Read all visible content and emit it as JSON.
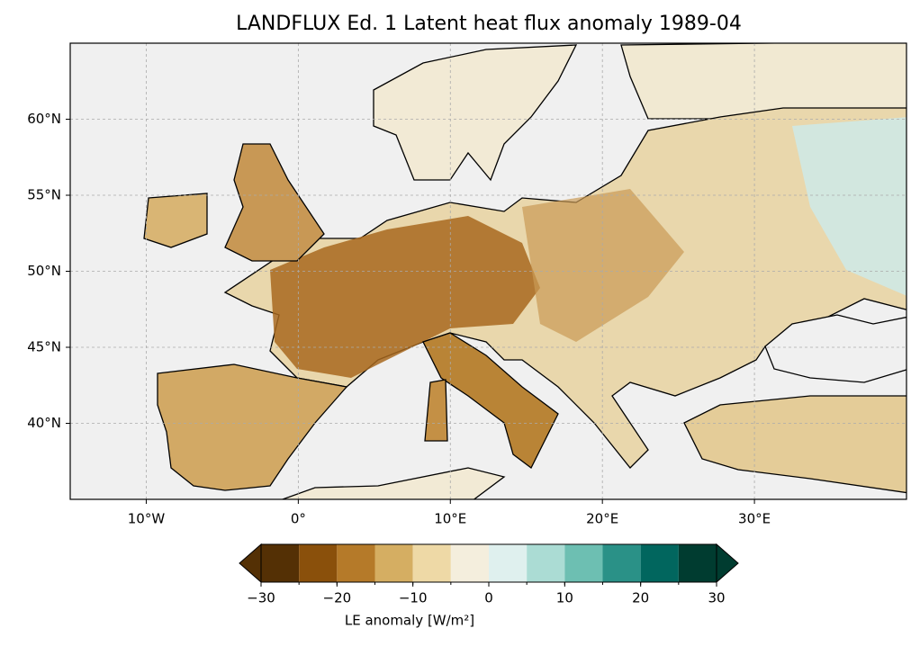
{
  "map": {
    "title": "LANDFLUX Ed. 1 Latent heat flux anomaly 1989-04",
    "xlim": [
      -15,
      40
    ],
    "ylim": [
      35,
      65
    ],
    "xticks": [
      {
        "value": -10,
        "label": "10°W"
      },
      {
        "value": 0,
        "label": "0°"
      },
      {
        "value": 10,
        "label": "10°E"
      },
      {
        "value": 20,
        "label": "20°E"
      },
      {
        "value": 30,
        "label": "30°E"
      }
    ],
    "yticks": [
      {
        "value": 40,
        "label": "40°N"
      },
      {
        "value": 45,
        "label": "45°N"
      },
      {
        "value": 50,
        "label": "50°N"
      },
      {
        "value": 55,
        "label": "55°N"
      },
      {
        "value": 60,
        "label": "60°N"
      }
    ],
    "grid": true,
    "colorbar": {
      "label": "LE anomaly [W/m²]",
      "extend": "both",
      "levels": [
        -30,
        -25,
        -20,
        -15,
        -10,
        -5,
        0,
        5,
        10,
        15,
        20,
        25,
        30
      ],
      "colors": [
        "#543005",
        "#8a500b",
        "#b57a29",
        "#d5ae62",
        "#eed9a6",
        "#f4eedd",
        "#dff0ee",
        "#abdcd4",
        "#6dbfb2",
        "#2a9187",
        "#01665e",
        "#003c30"
      ],
      "ticks": [
        {
          "value": -30,
          "label": "−30"
        },
        {
          "value": -20,
          "label": "−20"
        },
        {
          "value": -10,
          "label": "−10"
        },
        {
          "value": 0,
          "label": "0"
        },
        {
          "value": 10,
          "label": "10"
        },
        {
          "value": 20,
          "label": "20"
        },
        {
          "value": 30,
          "label": "30"
        }
      ]
    }
  }
}
